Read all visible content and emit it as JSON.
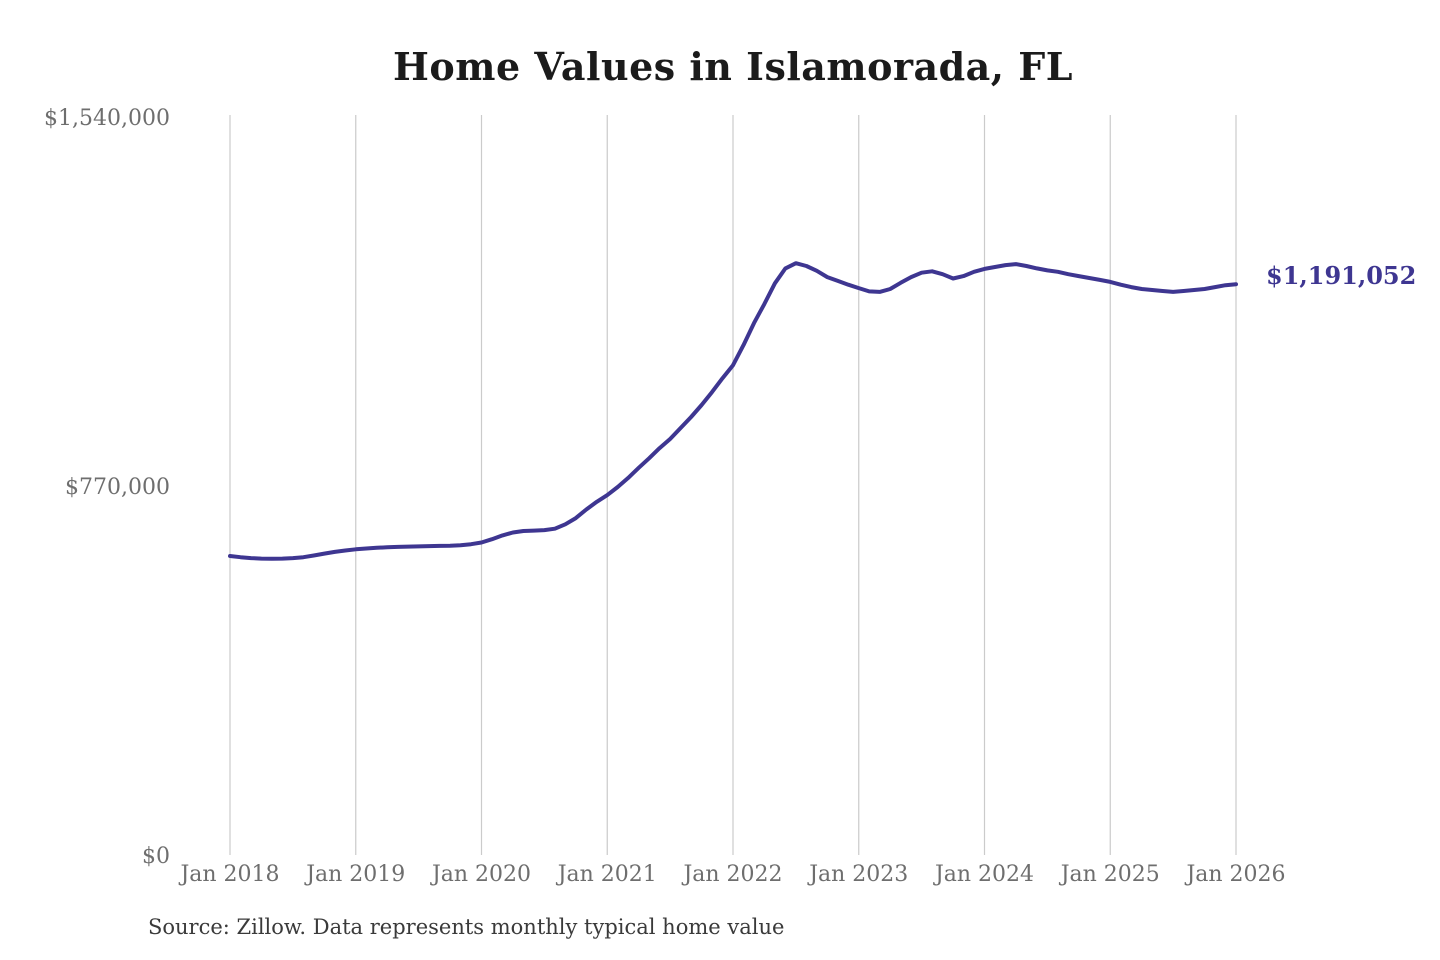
{
  "title": "Home Values in Islamorada, FL",
  "source_note": "Source: Zillow. Data represents monthly typical home value",
  "colors": {
    "line": "#3e3691",
    "grid": "#cbcbcb",
    "axis_text": "#6e6e6e",
    "title_text": "#1b1b1b",
    "source_text": "#3a3a3a",
    "background": "#ffffff"
  },
  "chart_data": {
    "type": "line",
    "title": "Home Values in Islamorada, FL",
    "xlabel": "",
    "ylabel": "",
    "x_range": {
      "start": "Jan 2018",
      "end": "Jan 2026",
      "interval": "monthly"
    },
    "x_tick_labels": [
      "Jan 2018",
      "Jan 2019",
      "Jan 2020",
      "Jan 2021",
      "Jan 2022",
      "Jan 2023",
      "Jan 2024",
      "Jan 2025",
      "Jan 2026"
    ],
    "y_ticks": [
      {
        "value": 0,
        "label": "$0"
      },
      {
        "value": 770000,
        "label": "$770,000"
      },
      {
        "value": 1540000,
        "label": "$1,540,000"
      }
    ],
    "ylim": [
      0,
      1540000
    ],
    "grid": "vertical-only",
    "legend": "none",
    "values": [
      624000,
      621500,
      619500,
      618500,
      618000,
      618500,
      619500,
      621500,
      625000,
      629000,
      632500,
      635500,
      638000,
      639500,
      641000,
      642000,
      643000,
      643500,
      644000,
      644500,
      645000,
      645500,
      646500,
      648500,
      652000,
      659000,
      667000,
      673000,
      676000,
      677000,
      678000,
      681000,
      690000,
      703000,
      721000,
      737000,
      751000,
      768000,
      787000,
      808000,
      828000,
      849000,
      868000,
      891000,
      914000,
      939000,
      966000,
      995000,
      1022000,
      1064000,
      1110000,
      1150000,
      1193000,
      1224000,
      1235000,
      1229000,
      1219000,
      1206000,
      1198000,
      1190000,
      1183000,
      1176000,
      1175000,
      1181000,
      1194000,
      1206000,
      1215000,
      1218000,
      1212000,
      1203000,
      1208000,
      1217000,
      1223000,
      1227000,
      1231000,
      1233000,
      1229000,
      1224000,
      1220000,
      1217000,
      1212000,
      1208000,
      1204000,
      1200000,
      1196000,
      1190000,
      1185000,
      1181000,
      1179000,
      1177000,
      1175000,
      1177000,
      1179000,
      1181000,
      1185000,
      1189000,
      1191052
    ],
    "last_value": 1191052,
    "last_point_label": "$1,191,052"
  }
}
